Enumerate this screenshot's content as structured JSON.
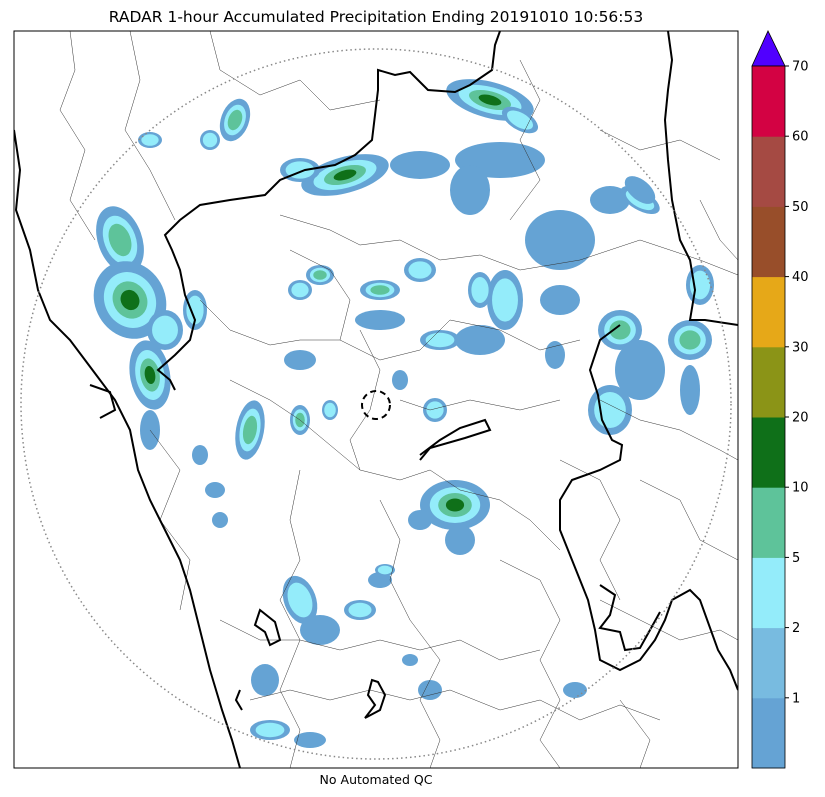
{
  "title": "RADAR 1-hour Accumulated Precipitation Ending 20191010 10:56:53",
  "footer": "No Automated QC",
  "colorbar": {
    "colors": [
      "#65a3d4",
      "#78bbe0",
      "#94ecfa",
      "#5ec39a",
      "#0f7019",
      "#8b9417",
      "#e6a818",
      "#984e2a",
      "#a54a43",
      "#d30243"
    ],
    "over_color": "#5000ff",
    "ticks": [
      "1",
      "2",
      "5",
      "10",
      "20",
      "30",
      "40",
      "50",
      "60",
      "70"
    ]
  }
}
